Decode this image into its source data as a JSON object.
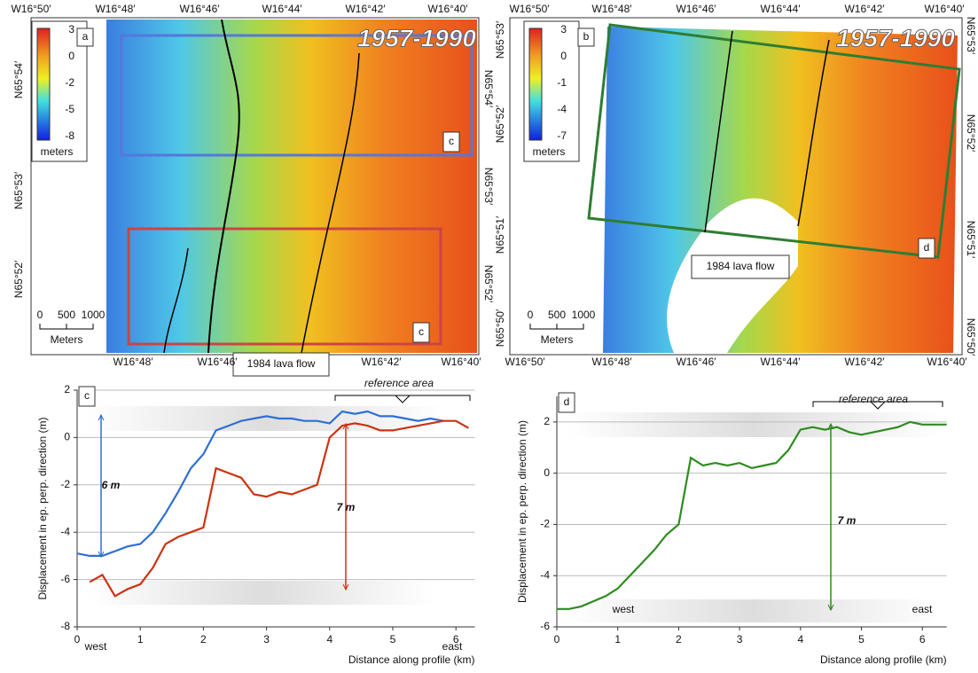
{
  "maps": [
    {
      "panel": "a",
      "period": "1957-1990",
      "top_labels": [
        "W16°50′",
        "W16°48′",
        "W16°46′",
        "W16°44′",
        "W16°42′",
        "W16°40′"
      ],
      "bottom_labels": [
        "W16°48′",
        "W16°46′",
        "W16°42′",
        "W16°40′"
      ],
      "left_labels": [
        "N65°54′",
        "N65°53′",
        "N65°52′"
      ],
      "right_labels": [
        "N65°54′",
        "N65°53′",
        "N65°52′"
      ],
      "colorbar_ticks": [
        "3",
        "0",
        "-2",
        "-5",
        "-8"
      ],
      "colorbar_unit": "meters",
      "scale_labels": [
        "0",
        "500",
        "1000"
      ],
      "scale_unit": "Meters",
      "box_labels": [
        "c",
        "c"
      ],
      "annotation": "1984 lava flow"
    },
    {
      "panel": "b",
      "period": "1957-1990",
      "top_labels": [
        "W16°50′",
        "W16°48′",
        "W16°46′",
        "W16°44′",
        "W16°42′",
        "W16°40′"
      ],
      "bottom_labels": [
        "W16°50′",
        "W16°48′",
        "W16°46′",
        "W16°44′",
        "W16°42′",
        "W16°40′"
      ],
      "left_labels": [
        "N65°53′",
        "N65°52′",
        "N65°51′",
        "N65°50′"
      ],
      "right_labels": [
        "N65°53′",
        "N65°52′",
        "N65°51′",
        "N65°50′"
      ],
      "colorbar_ticks": [
        "3",
        "0",
        "-1",
        "-4",
        "-7"
      ],
      "colorbar_unit": "meters",
      "scale_labels": [
        "0",
        "500",
        "1000"
      ],
      "scale_unit": "Meters",
      "box_labels": [
        "d"
      ],
      "annotation": "1984 lava flow"
    }
  ],
  "chart_data": [
    {
      "type": "line",
      "panel": "c",
      "x_label": "Distance along profile (km)",
      "y_label": "Displacement in ep. perp. direction (m)",
      "x": [
        0,
        0.2,
        0.4,
        0.6,
        0.8,
        1.0,
        1.2,
        1.4,
        1.6,
        1.8,
        2.0,
        2.2,
        2.4,
        2.6,
        2.8,
        3.0,
        3.2,
        3.4,
        3.6,
        3.8,
        4.0,
        4.2,
        4.4,
        4.6,
        4.8,
        5.0,
        5.2,
        5.4,
        5.6,
        5.8,
        6.0,
        6.2
      ],
      "series": [
        {
          "color": "#2f6fd6",
          "values": [
            -4.9,
            -5.0,
            -5.0,
            -4.8,
            -4.6,
            -4.5,
            -4.0,
            -3.2,
            -2.3,
            -1.3,
            -0.7,
            0.3,
            0.5,
            0.7,
            0.8,
            0.9,
            0.8,
            0.8,
            0.7,
            0.7,
            0.6,
            1.1,
            1.0,
            1.1,
            0.9,
            0.9,
            0.8,
            0.7,
            0.8,
            0.7,
            null,
            null
          ]
        },
        {
          "color": "#cc3311",
          "values": [
            null,
            -6.1,
            -5.8,
            -6.7,
            -6.4,
            -6.2,
            -5.5,
            -4.5,
            -4.2,
            -4.0,
            -3.8,
            -1.3,
            -1.5,
            -1.7,
            -2.4,
            -2.5,
            -2.3,
            -2.4,
            -2.2,
            -2.0,
            0.0,
            0.5,
            0.6,
            0.5,
            0.3,
            0.3,
            0.4,
            0.5,
            0.6,
            0.7,
            0.7,
            0.4
          ]
        }
      ],
      "xlim": [
        0,
        6.3
      ],
      "xticks": [
        0,
        1,
        2,
        3,
        4,
        5,
        6
      ],
      "ylim": [
        -8,
        2
      ],
      "yticks": [
        -8,
        -6,
        -4,
        -2,
        0,
        2
      ],
      "grid": true,
      "annotations": [
        "reference area",
        "6 m",
        "7 m",
        "west",
        "east"
      ]
    },
    {
      "type": "line",
      "panel": "d",
      "x_label": "Distance along profile (km)",
      "y_label": "Displacement in ep. perp. direction (m)",
      "x": [
        0,
        0.2,
        0.4,
        0.6,
        0.8,
        1.0,
        1.2,
        1.4,
        1.6,
        1.8,
        2.0,
        2.2,
        2.4,
        2.6,
        2.8,
        3.0,
        3.2,
        3.4,
        3.6,
        3.8,
        4.0,
        4.2,
        4.4,
        4.6,
        4.8,
        5.0,
        5.2,
        5.4,
        5.6,
        5.8,
        6.0,
        6.2,
        6.4
      ],
      "series": [
        {
          "color": "#2e8b1f",
          "values": [
            -5.3,
            -5.3,
            -5.2,
            -5.0,
            -4.8,
            -4.5,
            -4.0,
            -3.5,
            -3.0,
            -2.4,
            -2.0,
            0.6,
            0.3,
            0.4,
            0.3,
            0.4,
            0.2,
            0.3,
            0.4,
            0.9,
            1.7,
            1.8,
            1.7,
            1.8,
            1.6,
            1.5,
            1.6,
            1.7,
            1.8,
            2.0,
            1.9,
            1.9,
            1.9
          ]
        }
      ],
      "xlim": [
        0,
        6.4
      ],
      "xticks": [
        0,
        1,
        2,
        3,
        4,
        5,
        6
      ],
      "ylim": [
        -6,
        3
      ],
      "yticks": [
        -6,
        -4,
        -2,
        0,
        2
      ],
      "grid": true,
      "annotations": [
        "reference area",
        "7 m",
        "west",
        "east"
      ]
    }
  ]
}
